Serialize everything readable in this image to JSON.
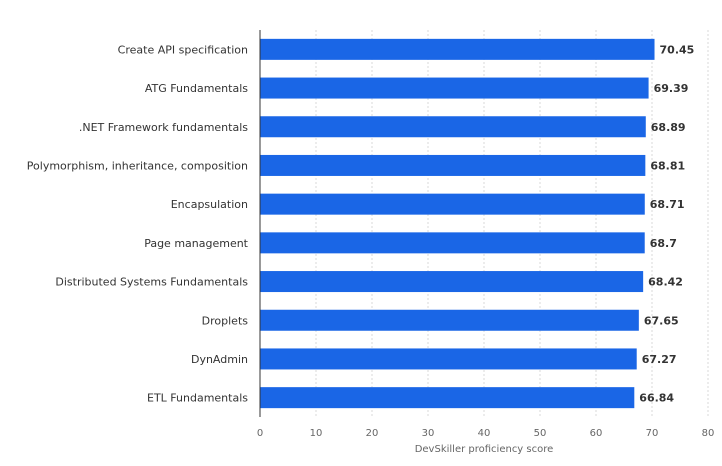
{
  "chart_data": {
    "type": "bar",
    "orientation": "horizontal",
    "categories": [
      "Create API specification",
      "ATG Fundamentals",
      ".NET Framework fundamentals",
      "Polymorphism, inheritance, composition",
      "Encapsulation",
      "Page management",
      "Distributed Systems Fundamentals",
      "Droplets",
      "DynAdmin",
      "ETL Fundamentals"
    ],
    "values": [
      70.45,
      69.39,
      68.89,
      68.81,
      68.71,
      68.7,
      68.42,
      67.65,
      67.27,
      66.84
    ],
    "value_labels": [
      "70.45",
      "69.39",
      "68.89",
      "68.81",
      "68.71",
      "68.7",
      "68.42",
      "67.65",
      "67.27",
      "66.84"
    ],
    "title": "",
    "xlabel": "DevSkiller proficiency score",
    "ylabel": "",
    "xlim": [
      0,
      80
    ],
    "xticks": [
      "0",
      "10",
      "20",
      "30",
      "40",
      "50",
      "60",
      "70",
      "80"
    ],
    "grid": "vertical dashed",
    "legend": "none",
    "bar_color": "#1a66e6",
    "grid_color": "#d8d8d8",
    "axis_color": "#333333"
  }
}
